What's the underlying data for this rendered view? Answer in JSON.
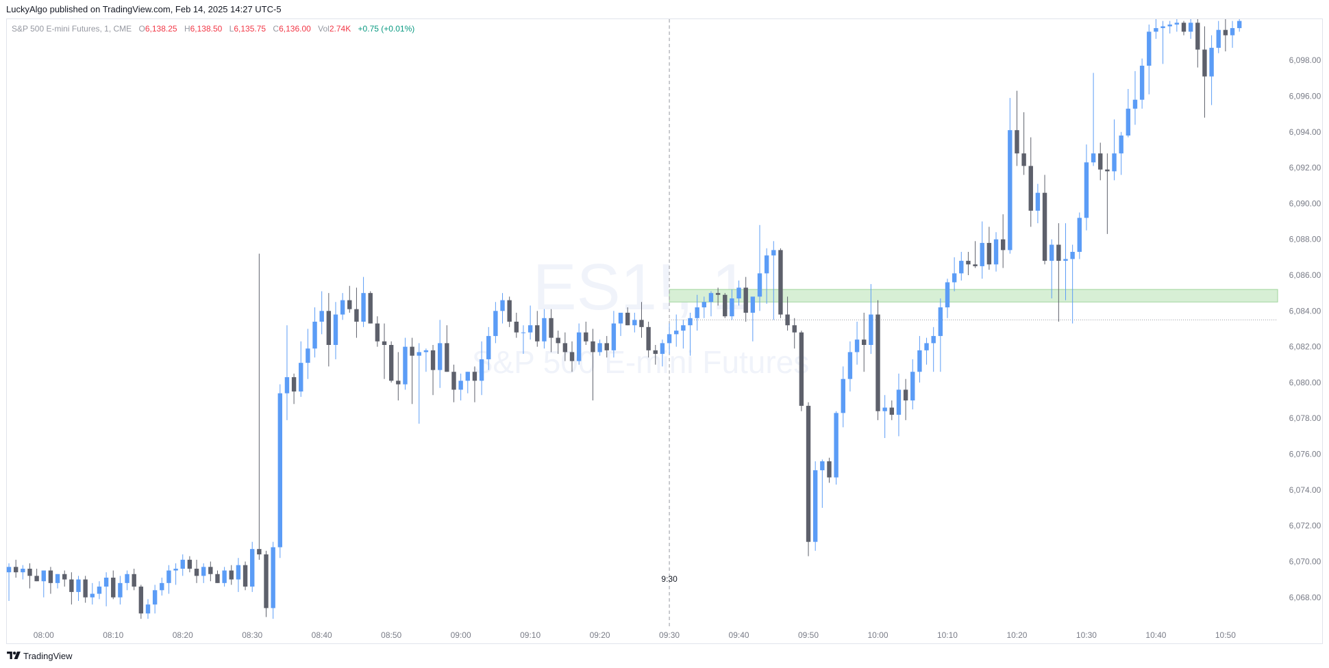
{
  "header": {
    "publish_line": "LuckyAlgo published on TradingView.com, Feb 14, 2025 14:27 UTC-5"
  },
  "legend": {
    "symbol": "S&P 500 E-mini Futures, 1, CME",
    "open_label": "O",
    "open": "6,138.25",
    "high_label": "H",
    "high": "6,138.50",
    "low_label": "L",
    "low": "6,135.75",
    "close_label": "C",
    "close": "6,136.00",
    "vol_label": "Vol",
    "vol": "2.74K",
    "change": "+0.75 (+0.01%)"
  },
  "watermark": {
    "ticker": "ES1!, 1",
    "name": "S&P 500 E-mini Futures"
  },
  "footer": {
    "brand": "TradingView"
  },
  "colors": {
    "up": "#5b9cf6",
    "down": "#5d606b",
    "zone_fill": "#d7efd5",
    "zone_border": "#9fd39b",
    "axis_text": "#787b86",
    "session_line": "#9598a1"
  },
  "chart_data": {
    "type": "candlestick",
    "interval_minutes": 1,
    "y_axis": {
      "position": "right",
      "range": [
        6066.5,
        6100.3
      ],
      "ticks": [
        6068,
        6070,
        6072,
        6074,
        6076,
        6078,
        6080,
        6082,
        6084,
        6086,
        6088,
        6090,
        6092,
        6094,
        6096,
        6098
      ],
      "tick_labels": [
        "6,068.00",
        "6,070.00",
        "6,072.00",
        "6,074.00",
        "6,076.00",
        "6,078.00",
        "6,080.00",
        "6,082.00",
        "6,084.00",
        "6,086.00",
        "6,088.00",
        "6,090.00",
        "6,092.00",
        "6,094.00",
        "6,096.00",
        "6,098.00"
      ]
    },
    "x_axis": {
      "range_minutes": [
        474.7,
        657.5
      ],
      "ticks": [
        480,
        490,
        500,
        510,
        520,
        530,
        540,
        550,
        560,
        570,
        580,
        590,
        600,
        610,
        620,
        630,
        640,
        650
      ],
      "tick_labels": [
        "08:00",
        "08:10",
        "08:20",
        "08:30",
        "08:40",
        "08:50",
        "09:00",
        "09:10",
        "09:20",
        "09:30",
        "09:40",
        "09:50",
        "10:00",
        "10:10",
        "10:20",
        "10:30",
        "10:40",
        "10:50"
      ]
    },
    "session_marker": {
      "time_minutes": 570,
      "label": "9:30"
    },
    "zone": {
      "from_minutes": 570,
      "low": 6084.5,
      "high": 6085.2
    },
    "price_line": {
      "from_minutes": 570,
      "price": 6083.5
    },
    "candles": [
      [
        475,
        6069.4,
        6069.9,
        6067.8,
        6069.7
      ],
      [
        476,
        6069.7,
        6070.1,
        6069.1,
        6069.4
      ],
      [
        477,
        6069.4,
        6069.8,
        6069.0,
        6069.6
      ],
      [
        478,
        6069.6,
        6069.9,
        6068.5,
        6069.2
      ],
      [
        479,
        6069.2,
        6069.6,
        6068.9,
        6068.9
      ],
      [
        480,
        6068.9,
        6069.5,
        6068.0,
        6069.5
      ],
      [
        481,
        6069.5,
        6069.7,
        6068.2,
        6068.8
      ],
      [
        482,
        6068.8,
        6069.3,
        6068.5,
        6069.3
      ],
      [
        483,
        6069.3,
        6069.5,
        6068.6,
        6069.0
      ],
      [
        484,
        6069.0,
        6069.4,
        6067.6,
        6068.3
      ],
      [
        485,
        6068.3,
        6069.2,
        6067.8,
        6069.0
      ],
      [
        486,
        6069.0,
        6069.2,
        6067.7,
        6068.0
      ],
      [
        487,
        6068.0,
        6068.8,
        6067.6,
        6068.2
      ],
      [
        488,
        6068.2,
        6068.9,
        6067.9,
        6068.6
      ],
      [
        489,
        6068.6,
        6069.4,
        6067.5,
        6069.1
      ],
      [
        490,
        6069.1,
        6069.5,
        6067.9,
        6068.0
      ],
      [
        491,
        6068.0,
        6069.2,
        6067.6,
        6068.8
      ],
      [
        492,
        6068.8,
        6069.5,
        6068.4,
        6069.3
      ],
      [
        493,
        6069.3,
        6069.6,
        6068.4,
        6068.6
      ],
      [
        494,
        6068.6,
        6068.7,
        6066.8,
        6067.1
      ],
      [
        495,
        6067.1,
        6067.9,
        6066.8,
        6067.6
      ],
      [
        496,
        6067.6,
        6068.7,
        6067.1,
        6068.4
      ],
      [
        497,
        6068.4,
        6069.1,
        6068.1,
        6068.8
      ],
      [
        498,
        6068.8,
        6069.8,
        6068.2,
        6069.5
      ],
      [
        499,
        6069.5,
        6069.9,
        6068.7,
        6069.6
      ],
      [
        500,
        6069.6,
        6070.4,
        6069.2,
        6070.1
      ],
      [
        501,
        6070.1,
        6070.3,
        6069.4,
        6069.6
      ],
      [
        502,
        6069.6,
        6070.1,
        6068.8,
        6069.2
      ],
      [
        503,
        6069.2,
        6069.9,
        6068.8,
        6069.7
      ],
      [
        504,
        6069.7,
        6070.0,
        6068.9,
        6069.3
      ],
      [
        505,
        6069.3,
        6069.5,
        6068.8,
        6068.8
      ],
      [
        506,
        6068.8,
        6069.7,
        6068.6,
        6069.5
      ],
      [
        507,
        6069.5,
        6069.8,
        6068.7,
        6069.0
      ],
      [
        508,
        6069.0,
        6070.2,
        6068.3,
        6069.8
      ],
      [
        509,
        6069.8,
        6070.0,
        6068.4,
        6068.6
      ],
      [
        510,
        6068.6,
        6071.1,
        6068.3,
        6070.7
      ],
      [
        511,
        6070.7,
        6087.2,
        6070.1,
        6070.4
      ],
      [
        512,
        6070.4,
        6070.6,
        6066.9,
        6067.4
      ],
      [
        513,
        6067.4,
        6071.1,
        6066.8,
        6070.8
      ],
      [
        514,
        6070.8,
        6079.9,
        6070.2,
        6079.4
      ],
      [
        515,
        6079.4,
        6083.2,
        6077.9,
        6080.3
      ],
      [
        516,
        6080.3,
        6080.5,
        6078.8,
        6079.5
      ],
      [
        517,
        6079.5,
        6082.3,
        6079.2,
        6081.1
      ],
      [
        518,
        6081.1,
        6083.0,
        6080.2,
        6081.9
      ],
      [
        519,
        6081.9,
        6084.2,
        6081.4,
        6083.4
      ],
      [
        520,
        6083.4,
        6085.1,
        6082.7,
        6084.0
      ],
      [
        521,
        6084.0,
        6085.0,
        6080.9,
        6082.1
      ],
      [
        522,
        6082.1,
        6084.5,
        6081.3,
        6083.8
      ],
      [
        523,
        6083.8,
        6085.0,
        6083.5,
        6084.6
      ],
      [
        524,
        6084.6,
        6085.4,
        6083.9,
        6084.1
      ],
      [
        525,
        6084.1,
        6085.3,
        6082.5,
        6083.4
      ],
      [
        526,
        6083.4,
        6085.9,
        6083.1,
        6085.0
      ],
      [
        527,
        6085.0,
        6085.1,
        6083.3,
        6083.3
      ],
      [
        528,
        6083.3,
        6083.7,
        6082.0,
        6082.3
      ],
      [
        529,
        6082.3,
        6083.3,
        6080.2,
        6082.1
      ],
      [
        530,
        6082.1,
        6082.3,
        6080.0,
        6080.1
      ],
      [
        531,
        6080.1,
        6081.7,
        6079.0,
        6079.9
      ],
      [
        532,
        6079.9,
        6082.5,
        6079.6,
        6082.0
      ],
      [
        533,
        6082.0,
        6082.5,
        6078.8,
        6081.5
      ],
      [
        534,
        6081.5,
        6082.2,
        6077.7,
        6081.7
      ],
      [
        535,
        6081.7,
        6081.9,
        6080.6,
        6081.8
      ],
      [
        536,
        6081.8,
        6082.1,
        6079.3,
        6080.7
      ],
      [
        537,
        6080.7,
        6083.5,
        6079.7,
        6082.2
      ],
      [
        538,
        6082.2,
        6083.2,
        6080.6,
        6080.6
      ],
      [
        539,
        6080.6,
        6081.0,
        6078.9,
        6079.6
      ],
      [
        540,
        6079.6,
        6080.5,
        6079.0,
        6080.1
      ],
      [
        541,
        6080.1,
        6080.6,
        6079.4,
        6080.6
      ],
      [
        542,
        6080.6,
        6080.9,
        6078.9,
        6080.1
      ],
      [
        543,
        6080.1,
        6082.3,
        6079.3,
        6081.3
      ],
      [
        544,
        6081.3,
        6083.1,
        6080.7,
        6082.6
      ],
      [
        545,
        6082.6,
        6084.5,
        6082.2,
        6084.0
      ],
      [
        546,
        6084.0,
        6085.0,
        6083.3,
        6084.6
      ],
      [
        547,
        6084.6,
        6084.8,
        6083.1,
        6083.4
      ],
      [
        548,
        6083.4,
        6083.9,
        6082.5,
        6082.8
      ],
      [
        549,
        6082.8,
        6083.2,
        6081.6,
        6082.8
      ],
      [
        550,
        6082.8,
        6084.3,
        6082.4,
        6083.2
      ],
      [
        551,
        6083.2,
        6084.0,
        6082.0,
        6082.3
      ],
      [
        552,
        6082.3,
        6084.1,
        6081.9,
        6083.6
      ],
      [
        553,
        6083.6,
        6084.1,
        6081.7,
        6082.5
      ],
      [
        554,
        6082.5,
        6082.9,
        6081.6,
        6082.2
      ],
      [
        555,
        6082.2,
        6082.8,
        6081.2,
        6081.7
      ],
      [
        556,
        6081.7,
        6082.3,
        6080.6,
        6081.2
      ],
      [
        557,
        6081.2,
        6083.3,
        6081.0,
        6082.8
      ],
      [
        558,
        6082.8,
        6083.4,
        6082.1,
        6082.3
      ],
      [
        559,
        6082.3,
        6083.0,
        6079.0,
        6081.7
      ],
      [
        560,
        6081.7,
        6082.4,
        6081.5,
        6082.2
      ],
      [
        561,
        6082.2,
        6082.6,
        6081.4,
        6081.8
      ],
      [
        562,
        6081.8,
        6084.0,
        6081.4,
        6083.3
      ],
      [
        563,
        6083.3,
        6083.8,
        6082.6,
        6083.9
      ],
      [
        564,
        6083.9,
        6084.2,
        6083.2,
        6083.2
      ],
      [
        565,
        6083.2,
        6083.9,
        6082.8,
        6083.5
      ],
      [
        566,
        6083.5,
        6084.5,
        6082.5,
        6083.1
      ],
      [
        567,
        6083.1,
        6083.4,
        6081.4,
        6081.8
      ],
      [
        568,
        6081.8,
        6082.1,
        6081.0,
        6081.6
      ],
      [
        569,
        6081.6,
        6082.4,
        6080.9,
        6082.2
      ],
      [
        570,
        6082.2,
        6083.3,
        6081.6,
        6082.7
      ],
      [
        571,
        6082.7,
        6083.8,
        6082.0,
        6082.9
      ],
      [
        572,
        6082.9,
        6083.5,
        6081.9,
        6083.2
      ],
      [
        573,
        6083.2,
        6083.9,
        6081.5,
        6083.6
      ],
      [
        574,
        6083.6,
        6084.9,
        6082.9,
        6084.2
      ],
      [
        575,
        6084.2,
        6084.8,
        6083.6,
        6084.5
      ],
      [
        576,
        6084.5,
        6085.1,
        6083.7,
        6085.0
      ],
      [
        577,
        6085.0,
        6085.3,
        6084.3,
        6084.9
      ],
      [
        578,
        6084.9,
        6085.0,
        6083.6,
        6083.7
      ],
      [
        579,
        6083.7,
        6085.2,
        6083.5,
        6084.7
      ],
      [
        580,
        6084.7,
        6085.7,
        6084.3,
        6085.3
      ],
      [
        581,
        6085.3,
        6085.9,
        6083.4,
        6083.9
      ],
      [
        582,
        6083.9,
        6084.7,
        6082.3,
        6084.8
      ],
      [
        583,
        6084.8,
        6088.8,
        6084.0,
        6086.1
      ],
      [
        584,
        6086.1,
        6087.5,
        6084.4,
        6087.1
      ],
      [
        585,
        6087.1,
        6087.9,
        6083.5,
        6087.4
      ],
      [
        586,
        6087.4,
        6087.5,
        6083.6,
        6083.8
      ],
      [
        587,
        6083.8,
        6084.8,
        6082.9,
        6083.2
      ],
      [
        588,
        6083.2,
        6083.6,
        6081.9,
        6082.8
      ],
      [
        589,
        6082.8,
        6082.9,
        6078.4,
        6078.7
      ],
      [
        590,
        6078.7,
        6078.9,
        6070.3,
        6071.1
      ],
      [
        591,
        6071.1,
        6075.6,
        6070.6,
        6075.1
      ],
      [
        592,
        6075.1,
        6075.7,
        6073.0,
        6075.6
      ],
      [
        593,
        6075.6,
        6075.8,
        6074.4,
        6074.7
      ],
      [
        594,
        6074.7,
        6078.4,
        6074.3,
        6078.3
      ],
      [
        595,
        6078.3,
        6080.9,
        6077.5,
        6080.2
      ],
      [
        596,
        6080.2,
        6082.3,
        6079.5,
        6081.7
      ],
      [
        597,
        6081.7,
        6083.4,
        6081.0,
        6082.4
      ],
      [
        598,
        6082.4,
        6083.9,
        6080.6,
        6082.1
      ],
      [
        599,
        6082.1,
        6085.5,
        6081.6,
        6083.8
      ],
      [
        600,
        6083.8,
        6084.6,
        6077.9,
        6078.4
      ],
      [
        601,
        6078.4,
        6079.3,
        6076.9,
        6078.6
      ],
      [
        602,
        6078.6,
        6079.0,
        6077.9,
        6078.2
      ],
      [
        603,
        6078.2,
        6080.5,
        6077.0,
        6079.6
      ],
      [
        604,
        6079.6,
        6080.2,
        6077.9,
        6079.0
      ],
      [
        605,
        6079.0,
        6081.3,
        6078.5,
        6080.6
      ],
      [
        606,
        6080.6,
        6082.6,
        6080.0,
        6081.8
      ],
      [
        607,
        6081.8,
        6082.5,
        6081.0,
        6082.2
      ],
      [
        608,
        6082.2,
        6083.1,
        6080.6,
        6082.6
      ],
      [
        609,
        6082.6,
        6084.7,
        6080.6,
        6084.2
      ],
      [
        610,
        6084.2,
        6085.8,
        6083.6,
        6085.6
      ],
      [
        611,
        6085.6,
        6087.0,
        6085.1,
        6086.1
      ],
      [
        612,
        6086.1,
        6087.3,
        6085.7,
        6086.8
      ],
      [
        613,
        6086.8,
        6087.3,
        6086.0,
        6086.6
      ],
      [
        614,
        6086.6,
        6087.9,
        6086.4,
        6086.5
      ],
      [
        615,
        6086.5,
        6089.0,
        6085.8,
        6087.8
      ],
      [
        616,
        6087.8,
        6088.7,
        6086.3,
        6086.6
      ],
      [
        617,
        6086.6,
        6088.4,
        6086.2,
        6088.0
      ],
      [
        618,
        6088.0,
        6089.4,
        6086.4,
        6087.4
      ],
      [
        619,
        6087.4,
        6095.9,
        6087.2,
        6094.1
      ],
      [
        620,
        6094.1,
        6096.3,
        6092.1,
        6092.8
      ],
      [
        621,
        6092.8,
        6095.1,
        6091.6,
        6092.1
      ],
      [
        622,
        6092.1,
        6093.7,
        6088.7,
        6089.6
      ],
      [
        623,
        6089.6,
        6091.1,
        6088.9,
        6090.6
      ],
      [
        624,
        6090.6,
        6091.6,
        6086.6,
        6086.8
      ],
      [
        625,
        6086.8,
        6088.0,
        6084.7,
        6087.7
      ],
      [
        626,
        6087.7,
        6088.9,
        6083.4,
        6086.8
      ],
      [
        627,
        6086.8,
        6088.9,
        6084.6,
        6086.9
      ],
      [
        628,
        6086.9,
        6087.7,
        6083.3,
        6087.3
      ],
      [
        629,
        6087.3,
        6089.5,
        6086.9,
        6089.2
      ],
      [
        630,
        6089.2,
        6093.3,
        6088.5,
        6092.3
      ],
      [
        631,
        6092.3,
        6097.3,
        6092.1,
        6092.8
      ],
      [
        632,
        6092.8,
        6093.4,
        6091.3,
        6091.9
      ],
      [
        633,
        6091.9,
        6092.8,
        6088.3,
        6091.8
      ],
      [
        634,
        6091.8,
        6094.7,
        6091.3,
        6092.8
      ],
      [
        635,
        6092.8,
        6094.0,
        6091.6,
        6093.8
      ],
      [
        636,
        6093.8,
        6096.4,
        6093.7,
        6095.3
      ],
      [
        637,
        6095.3,
        6097.4,
        6094.4,
        6095.8
      ],
      [
        638,
        6095.8,
        6098.1,
        6095.3,
        6097.7
      ],
      [
        639,
        6097.7,
        6100.0,
        6096.1,
        6099.6
      ],
      [
        640,
        6099.6,
        6100.3,
        6099.2,
        6099.8
      ],
      [
        641,
        6099.8,
        6100.2,
        6097.8,
        6099.9
      ],
      [
        642,
        6099.9,
        6100.2,
        6099.5,
        6100.0
      ],
      [
        643,
        6100.0,
        6100.3,
        6099.6,
        6100.1
      ],
      [
        644,
        6100.1,
        6100.2,
        6099.4,
        6099.6
      ],
      [
        645,
        6099.6,
        6100.3,
        6099.2,
        6100.1
      ],
      [
        646,
        6100.1,
        6100.3,
        6097.6,
        6098.6
      ],
      [
        647,
        6098.6,
        6099.9,
        6094.8,
        6097.1
      ],
      [
        648,
        6097.1,
        6099.4,
        6095.5,
        6098.7
      ],
      [
        649,
        6098.7,
        6100.2,
        6098.4,
        6099.7
      ],
      [
        650,
        6099.7,
        6100.3,
        6098.5,
        6099.4
      ],
      [
        651,
        6099.4,
        6100.2,
        6098.7,
        6099.8
      ],
      [
        652,
        6099.8,
        6100.3,
        6099.6,
        6100.2
      ]
    ],
    "candle_format": [
      "time_minutes",
      "open",
      "high",
      "low",
      "close"
    ]
  }
}
